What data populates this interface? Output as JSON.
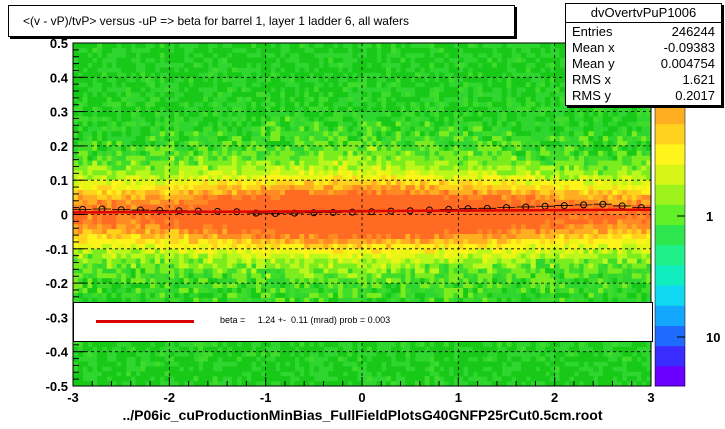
{
  "title": "<(v - vP)/tvP> versus  -uP => beta for barrel 1, layer 1 ladder 6, all wafers",
  "stats": {
    "name": "dvOvertvPuP1006",
    "rows": [
      {
        "key": "Entries",
        "value": "246244"
      },
      {
        "key": "Mean x",
        "value": "-0.09383"
      },
      {
        "key": "Mean y",
        "value": "0.004754"
      },
      {
        "key": "RMS x",
        "value": "1.621"
      },
      {
        "key": "RMS y",
        "value": "0.2017"
      }
    ]
  },
  "legend": {
    "text": "beta =     1.24 +-  0.11 (mrad) prob = 0.003",
    "line_color": "#dd0000"
  },
  "file_label": "../P06ic_cuProductionMinBias_FullFieldPlotsG40GNFP25rCut0.5cm.root",
  "chart_data": {
    "type": "heatmap",
    "xlim": [
      -3,
      3
    ],
    "ylim": [
      -0.5,
      0.5
    ],
    "x_ticks": [
      "-3",
      "-2",
      "-1",
      "0",
      "1",
      "2",
      "3"
    ],
    "y_ticks": [
      "-0.5",
      "-0.4",
      "-0.3",
      "-0.2",
      "-0.1",
      "0",
      "0.1",
      "0.2",
      "0.3",
      "0.4",
      "0.5"
    ],
    "z_ticks": [
      "10",
      "1",
      "10"
    ],
    "z_scale": "log",
    "grid": true,
    "profile": {
      "x": [
        -2.9,
        -2.7,
        -2.5,
        -2.3,
        -2.1,
        -1.9,
        -1.7,
        -1.5,
        -1.3,
        -1.1,
        -0.9,
        -0.7,
        -0.5,
        -0.3,
        -0.1,
        0.1,
        0.3,
        0.5,
        0.7,
        0.9,
        1.1,
        1.3,
        1.5,
        1.7,
        1.9,
        2.1,
        2.3,
        2.5,
        2.7,
        2.9
      ],
      "y": [
        0.015,
        0.016,
        0.014,
        0.013,
        0.012,
        0.011,
        0.01,
        0.009,
        0.008,
        0.004,
        0.003,
        0.004,
        0.005,
        0.006,
        0.007,
        0.008,
        0.01,
        0.011,
        0.013,
        0.015,
        0.017,
        0.018,
        0.02,
        0.022,
        0.024,
        0.026,
        0.028,
        0.03,
        0.025,
        0.02
      ]
    },
    "fit": {
      "x": [
        -3,
        3
      ],
      "y": [
        0.006,
        0.014
      ],
      "color": "#dd0000"
    }
  }
}
